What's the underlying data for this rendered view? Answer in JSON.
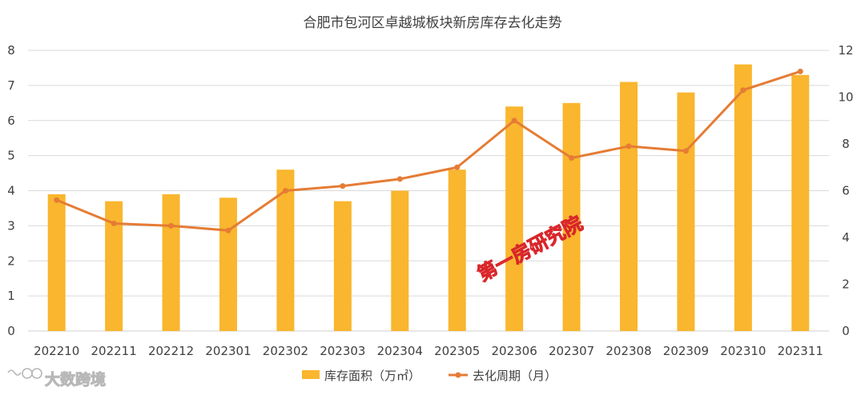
{
  "chart_data": {
    "type": "bar",
    "title": "合肥市包河区卓越城板块新房库存去化走势",
    "categories": [
      "202210",
      "202211",
      "202212",
      "202301",
      "202302",
      "202303",
      "202304",
      "202305",
      "202306",
      "202307",
      "202308",
      "202309",
      "202310",
      "202311"
    ],
    "series": [
      {
        "name": "库存面积（万㎡）",
        "type": "bar",
        "axis": "left",
        "color": "#F9B62E",
        "values": [
          3.9,
          3.7,
          3.9,
          3.8,
          4.6,
          3.7,
          4.0,
          4.6,
          6.4,
          6.5,
          7.1,
          6.8,
          7.6,
          7.3
        ]
      },
      {
        "name": "去化周期（月）",
        "type": "line",
        "axis": "right",
        "color": "#E57C35",
        "values": [
          5.6,
          4.6,
          4.5,
          4.3,
          6.0,
          6.2,
          6.5,
          7.0,
          9.0,
          7.4,
          7.9,
          7.7,
          10.3,
          11.1
        ]
      }
    ],
    "y_left": {
      "range": [
        0,
        8
      ],
      "ticks": [
        "0",
        "1",
        "2",
        "3",
        "4",
        "5",
        "6",
        "7",
        "8"
      ]
    },
    "y_right": {
      "range": [
        0,
        12
      ],
      "ticks": [
        "0",
        "2",
        "4",
        "6",
        "8",
        "10",
        "12"
      ]
    },
    "grid": true,
    "legend": "bottom-center"
  },
  "watermark": "第一房研究院",
  "logo_text": "大数跨境"
}
